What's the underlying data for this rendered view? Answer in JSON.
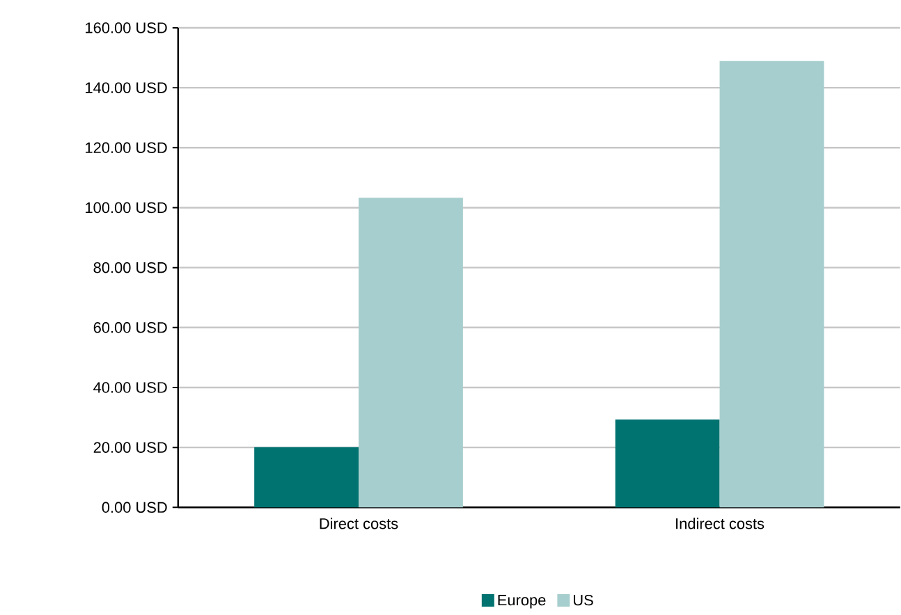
{
  "chart_data": {
    "type": "bar",
    "categories": [
      "Direct costs",
      "Indirect costs"
    ],
    "series": [
      {
        "name": "Europe",
        "color": "#007370",
        "values": [
          20.1,
          29.3
        ]
      },
      {
        "name": "US",
        "color": "#a7cece",
        "values": [
          103.3,
          148.9
        ]
      }
    ],
    "ylim": [
      0,
      160
    ],
    "yticks": [
      {
        "value": 0,
        "label": "0.00 USD"
      },
      {
        "value": 20,
        "label": "20.00 USD"
      },
      {
        "value": 40,
        "label": "40.00 USD"
      },
      {
        "value": 60,
        "label": "60.00 USD"
      },
      {
        "value": 80,
        "label": "80.00 USD"
      },
      {
        "value": 100,
        "label": "100.00 USD"
      },
      {
        "value": 120,
        "label": "120.00 USD"
      },
      {
        "value": 140,
        "label": "140.00 USD"
      },
      {
        "value": 160,
        "label": "160.00 USD"
      }
    ],
    "grid": "y",
    "legend": "bottom"
  }
}
